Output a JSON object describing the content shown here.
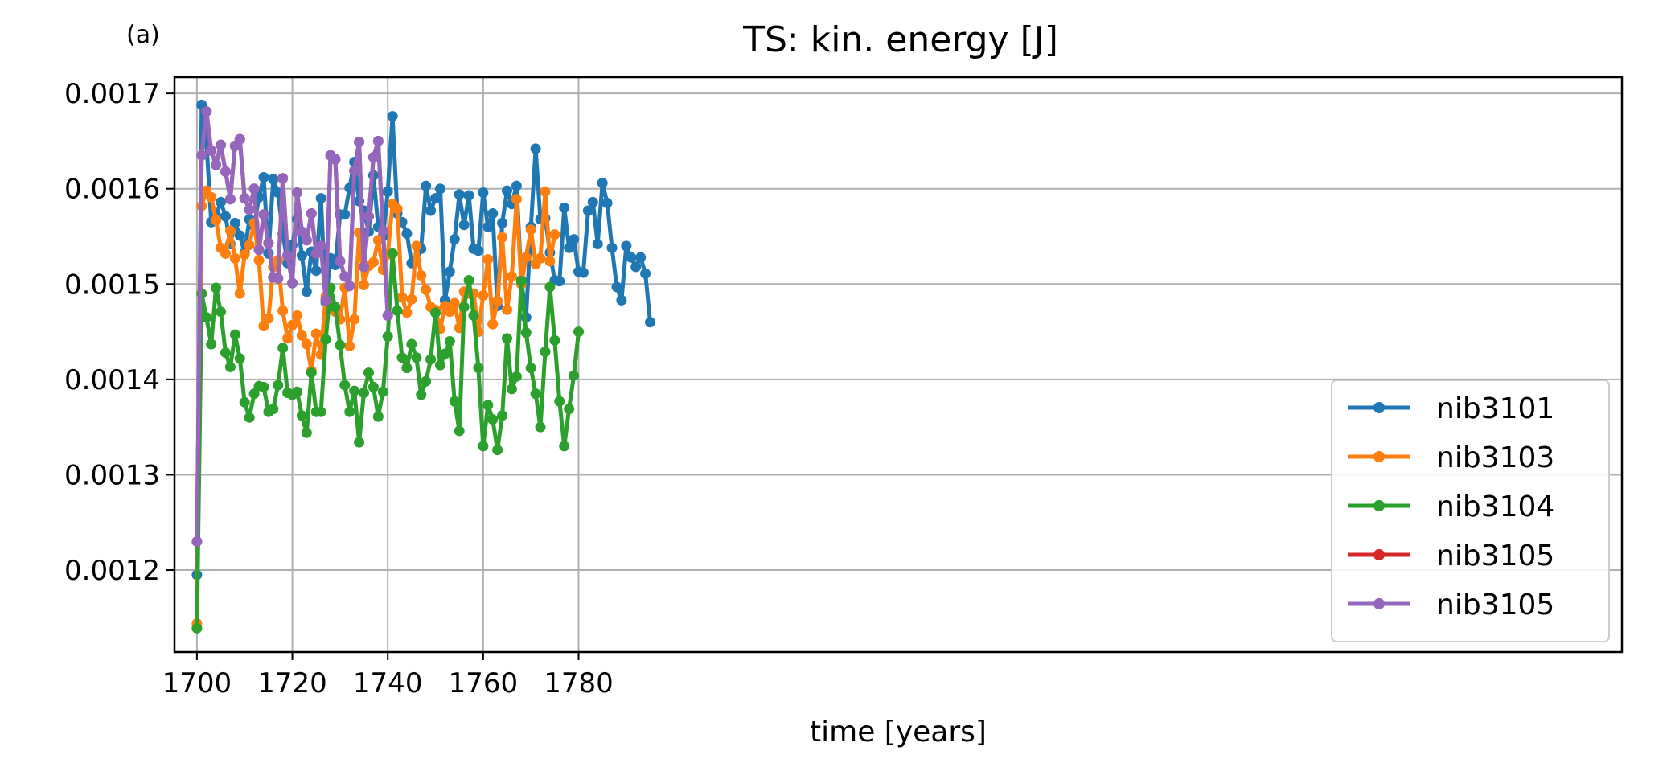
{
  "chart_data": {
    "type": "line",
    "panel_label": "(a)",
    "title": "TS: kin. energy [J]",
    "xlabel": "time [years]",
    "ylabel": "",
    "xlim": [
      1695.3,
      1998.7
    ],
    "ylim": [
      0.001114,
      0.001717
    ],
    "xticks": [
      1700,
      1720,
      1740,
      1760,
      1780
    ],
    "xtick_labels": [
      "1700",
      "1720",
      "1740",
      "1760",
      "1780"
    ],
    "yticks": [
      0.0012,
      0.0013,
      0.0014,
      0.0015,
      0.0016,
      0.0017
    ],
    "ytick_labels": [
      "0.0012",
      "0.0013",
      "0.0014",
      "0.0015",
      "0.0016",
      "0.0017"
    ],
    "grid": true,
    "legend_position": "lower-right",
    "marker": "circle",
    "series": [
      {
        "name": "nib3101",
        "color": "#1f77b4",
        "x_start": 1700,
        "values": [
          0.001195,
          0.001688,
          0.001649,
          0.001565,
          0.001572,
          0.001586,
          0.001571,
          0.001542,
          0.001564,
          0.001551,
          0.001533,
          0.001568,
          0.001561,
          0.001591,
          0.001612,
          0.001532,
          0.00161,
          0.001596,
          0.001553,
          0.001522,
          0.001541,
          0.001568,
          0.00153,
          0.001492,
          0.001534,
          0.001514,
          0.00159,
          0.001481,
          0.001527,
          0.00152,
          0.001573,
          0.001573,
          0.001601,
          0.001628,
          0.001587,
          0.001577,
          0.001555,
          0.001614,
          0.00156,
          0.00155,
          0.001597,
          0.001676,
          0.001574,
          0.001565,
          0.001553,
          0.001522,
          0.001524,
          0.001537,
          0.001603,
          0.001577,
          0.00159,
          0.0016,
          0.001483,
          0.001513,
          0.001547,
          0.001594,
          0.001562,
          0.001593,
          0.001537,
          0.001535,
          0.001596,
          0.00156,
          0.001574,
          0.001477,
          0.001564,
          0.001598,
          0.001584,
          0.001603,
          0.001504,
          0.001465,
          0.00156,
          0.001642,
          0.001568,
          0.001569,
          0.001533,
          0.001504,
          0.001503,
          0.00158,
          0.001538,
          0.001547,
          0.001513,
          0.001512,
          0.001577,
          0.001586,
          0.001542,
          0.001606,
          0.001585,
          0.001538,
          0.001497,
          0.001483,
          0.00154,
          0.001528,
          0.001518,
          0.001528,
          0.001511,
          0.00146
        ]
      },
      {
        "name": "nib3103",
        "color": "#ff7f0e",
        "x_start": 1700,
        "values": [
          0.001144,
          0.001582,
          0.001598,
          0.001591,
          0.001567,
          0.001538,
          0.001532,
          0.001556,
          0.001527,
          0.00149,
          0.001531,
          0.001541,
          0.001564,
          0.001525,
          0.001456,
          0.001464,
          0.001518,
          0.001525,
          0.001472,
          0.001443,
          0.001457,
          0.001467,
          0.001446,
          0.001437,
          0.001409,
          0.001448,
          0.001426,
          0.001487,
          0.001478,
          0.001471,
          0.001463,
          0.001496,
          0.001435,
          0.001463,
          0.001554,
          0.001499,
          0.001519,
          0.001523,
          0.001546,
          0.001515,
          0.001531,
          0.001584,
          0.001579,
          0.001486,
          0.00147,
          0.001484,
          0.00154,
          0.001509,
          0.001494,
          0.001476,
          0.001473,
          0.001453,
          0.001477,
          0.001471,
          0.00148,
          0.001454,
          0.001492,
          0.00149,
          0.00149,
          0.00145,
          0.001488,
          0.001526,
          0.001458,
          0.001482,
          0.001549,
          0.001473,
          0.001508,
          0.001589,
          0.0015,
          0.001528,
          0.001557,
          0.001521,
          0.001527,
          0.001597,
          0.001524,
          0.001552
        ]
      },
      {
        "name": "nib3104",
        "color": "#2ca02c",
        "x_start": 1700,
        "values": [
          0.001139,
          0.00149,
          0.001465,
          0.001437,
          0.001496,
          0.001471,
          0.001428,
          0.001413,
          0.001447,
          0.001422,
          0.001376,
          0.00136,
          0.001385,
          0.001393,
          0.001392,
          0.001366,
          0.001369,
          0.001394,
          0.001433,
          0.001386,
          0.001384,
          0.001387,
          0.001362,
          0.001344,
          0.001407,
          0.001366,
          0.001366,
          0.001442,
          0.001496,
          0.001476,
          0.001436,
          0.001394,
          0.001366,
          0.001388,
          0.001334,
          0.001386,
          0.001407,
          0.001392,
          0.001361,
          0.001387,
          0.001445,
          0.001532,
          0.001472,
          0.001423,
          0.001412,
          0.001437,
          0.001423,
          0.001384,
          0.001398,
          0.001421,
          0.00147,
          0.001415,
          0.001427,
          0.00144,
          0.001377,
          0.001346,
          0.001476,
          0.001504,
          0.001467,
          0.001412,
          0.00133,
          0.001373,
          0.001358,
          0.001326,
          0.001362,
          0.001443,
          0.00139,
          0.001403,
          0.001503,
          0.001449,
          0.001412,
          0.001385,
          0.00135,
          0.001429,
          0.001497,
          0.001441,
          0.001377,
          0.00133,
          0.001369,
          0.001404,
          0.00145
        ]
      },
      {
        "name": "nib3105",
        "color": "#d62728",
        "x_start": 1700,
        "values": [
          0.00123,
          0.001635,
          0.001681,
          0.00164,
          0.001625,
          0.001646,
          0.001618,
          0.001589,
          0.001645,
          0.001652,
          0.00159,
          0.001578,
          0.0016,
          0.001536,
          0.001573,
          0.001543,
          0.001507,
          0.001506,
          0.001611,
          0.00153,
          0.001501,
          0.001596,
          0.001555,
          0.001546,
          0.001574,
          0.001532,
          0.00154,
          0.001483,
          0.001635,
          0.001631,
          0.001524,
          0.001508,
          0.001498,
          0.001619,
          0.001649,
          0.001518,
          0.001571,
          0.001633,
          0.00165,
          0.001556,
          0.001467
        ]
      },
      {
        "name": "nib3105",
        "color": "#9467bd",
        "x_start": 1700,
        "values": [
          0.00123,
          0.001635,
          0.001681,
          0.00164,
          0.001625,
          0.001646,
          0.001618,
          0.001589,
          0.001645,
          0.001652,
          0.00159,
          0.001578,
          0.0016,
          0.001536,
          0.001573,
          0.001543,
          0.001507,
          0.001506,
          0.001611,
          0.00153,
          0.001501,
          0.001596,
          0.001555,
          0.001546,
          0.001574,
          0.001532,
          0.00154,
          0.001483,
          0.001635,
          0.001631,
          0.001524,
          0.001508,
          0.001498,
          0.001619,
          0.001649,
          0.001518,
          0.001571,
          0.001633,
          0.00165,
          0.001556,
          0.001467
        ]
      }
    ]
  }
}
